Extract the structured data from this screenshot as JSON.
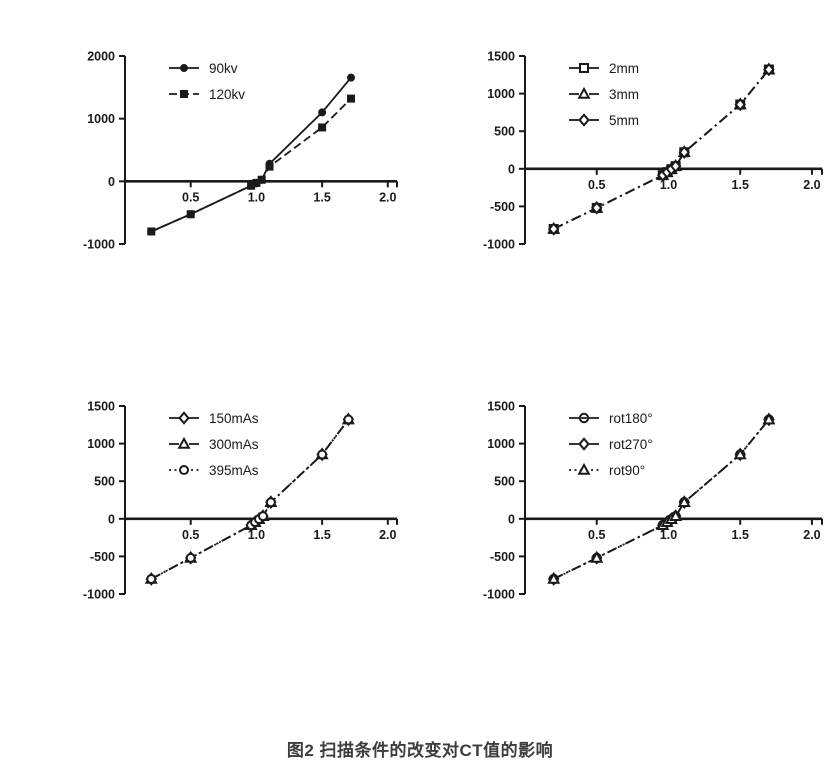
{
  "page": {
    "background": "#ffffff"
  },
  "colors": {
    "ink": "#1a1a1a",
    "caption": "#3d3d3d",
    "marker_fill": "#ffffff"
  },
  "caption": "图2  扫描条件的改变对CT值的影响",
  "chart_data": [
    {
      "type": "line",
      "title": "",
      "xlabel": "",
      "ylabel": "",
      "xlim": [
        0,
        2.07
      ],
      "ylim": [
        -1000,
        2000
      ],
      "xticks": [
        0.5,
        1.0,
        1.5,
        2.0
      ],
      "yticks": [
        2000,
        1000,
        0,
        -1000
      ],
      "grid": false,
      "legend_position": "upper-left",
      "series": [
        {
          "name": "90kv",
          "marker": "filled-circle",
          "linestyle": "solid",
          "points": [
            [
              0.2,
              -800
            ],
            [
              0.5,
              -525
            ],
            [
              0.96,
              -70
            ],
            [
              1.0,
              -25
            ],
            [
              1.04,
              25
            ],
            [
              1.1,
              280
            ],
            [
              1.5,
              1100
            ],
            [
              1.72,
              1655
            ]
          ]
        },
        {
          "name": "120kv",
          "marker": "filled-square",
          "linestyle": "dashed",
          "points": [
            [
              0.2,
              -800
            ],
            [
              0.5,
              -525
            ],
            [
              0.96,
              -70
            ],
            [
              1.0,
              -25
            ],
            [
              1.04,
              25
            ],
            [
              1.1,
              235
            ],
            [
              1.5,
              860
            ],
            [
              1.72,
              1320
            ]
          ]
        }
      ]
    },
    {
      "type": "line",
      "title": "",
      "xlabel": "",
      "ylabel": "",
      "xlim": [
        0,
        2.07
      ],
      "ylim": [
        -1000,
        1500
      ],
      "xticks": [
        0.5,
        1.0,
        1.5,
        2.0
      ],
      "yticks": [
        1500,
        1000,
        500,
        0,
        -500,
        -1000
      ],
      "grid": false,
      "legend_position": "upper-left",
      "series": [
        {
          "name": "2mm",
          "marker": "open-square",
          "linestyle": "dashdot",
          "points": [
            [
              0.2,
              -800
            ],
            [
              0.5,
              -520
            ],
            [
              0.96,
              -85
            ],
            [
              0.99,
              -45
            ],
            [
              1.02,
              -5
            ],
            [
              1.05,
              35
            ],
            [
              1.11,
              220
            ],
            [
              1.5,
              855
            ],
            [
              1.7,
              1320
            ]
          ]
        },
        {
          "name": "3mm",
          "marker": "open-triangle",
          "linestyle": "dashdot",
          "points": [
            [
              0.2,
              -800
            ],
            [
              0.5,
              -520
            ],
            [
              0.96,
              -85
            ],
            [
              0.99,
              -45
            ],
            [
              1.02,
              -5
            ],
            [
              1.05,
              35
            ],
            [
              1.11,
              220
            ],
            [
              1.5,
              855
            ],
            [
              1.7,
              1320
            ]
          ]
        },
        {
          "name": "5mm",
          "marker": "open-diamond",
          "linestyle": "dashdot",
          "points": [
            [
              0.2,
              -800
            ],
            [
              0.5,
              -520
            ],
            [
              0.96,
              -85
            ],
            [
              0.99,
              -45
            ],
            [
              1.02,
              -5
            ],
            [
              1.05,
              35
            ],
            [
              1.11,
              220
            ],
            [
              1.5,
              855
            ],
            [
              1.7,
              1320
            ]
          ]
        }
      ]
    },
    {
      "type": "line",
      "title": "",
      "xlabel": "",
      "ylabel": "",
      "xlim": [
        0,
        2.07
      ],
      "ylim": [
        -1000,
        1500
      ],
      "xticks": [
        0.5,
        1.0,
        1.5,
        2.0
      ],
      "yticks": [
        1500,
        1000,
        500,
        0,
        -500,
        -1000
      ],
      "grid": false,
      "legend_position": "upper-left",
      "series": [
        {
          "name": "150mAs",
          "marker": "open-diamond",
          "linestyle": "dashdot",
          "points": [
            [
              0.2,
              -800
            ],
            [
              0.5,
              -520
            ],
            [
              0.96,
              -85
            ],
            [
              0.99,
              -45
            ],
            [
              1.02,
              -5
            ],
            [
              1.05,
              35
            ],
            [
              1.11,
              220
            ],
            [
              1.5,
              855
            ],
            [
              1.7,
              1320
            ]
          ]
        },
        {
          "name": "300mAs",
          "marker": "open-triangle",
          "linestyle": "dashdot",
          "points": [
            [
              0.2,
              -800
            ],
            [
              0.5,
              -520
            ],
            [
              0.96,
              -85
            ],
            [
              0.99,
              -45
            ],
            [
              1.02,
              -5
            ],
            [
              1.05,
              35
            ],
            [
              1.11,
              220
            ],
            [
              1.5,
              855
            ],
            [
              1.7,
              1320
            ]
          ]
        },
        {
          "name": "395mAs",
          "marker": "open-circle",
          "linestyle": "dotted",
          "points": [
            [
              0.2,
              -800
            ],
            [
              0.5,
              -520
            ],
            [
              0.96,
              -85
            ],
            [
              0.99,
              -45
            ],
            [
              1.02,
              -5
            ],
            [
              1.05,
              35
            ],
            [
              1.11,
              220
            ],
            [
              1.5,
              855
            ],
            [
              1.7,
              1320
            ]
          ]
        }
      ]
    },
    {
      "type": "line",
      "title": "",
      "xlabel": "",
      "ylabel": "",
      "xlim": [
        0,
        2.07
      ],
      "ylim": [
        -1000,
        1500
      ],
      "xticks": [
        0.5,
        1.0,
        1.5,
        2.0
      ],
      "yticks": [
        1500,
        1000,
        500,
        0,
        -500,
        -1000
      ],
      "grid": false,
      "legend_position": "upper-left",
      "series": [
        {
          "name": "rot180°",
          "marker": "circle-hbar",
          "linestyle": "dashdot",
          "points": [
            [
              0.2,
              -800
            ],
            [
              0.5,
              -520
            ],
            [
              0.96,
              -85
            ],
            [
              0.99,
              -45
            ],
            [
              1.02,
              -5
            ],
            [
              1.05,
              35
            ],
            [
              1.11,
              220
            ],
            [
              1.5,
              855
            ],
            [
              1.7,
              1320
            ]
          ]
        },
        {
          "name": "rot270°",
          "marker": "open-diamond",
          "linestyle": "dashdot",
          "points": [
            [
              0.2,
              -800
            ],
            [
              0.5,
              -520
            ],
            [
              0.96,
              -85
            ],
            [
              0.99,
              -45
            ],
            [
              1.02,
              -5
            ],
            [
              1.05,
              35
            ],
            [
              1.11,
              220
            ],
            [
              1.5,
              855
            ],
            [
              1.7,
              1320
            ]
          ]
        },
        {
          "name": "rot90°",
          "marker": "open-triangle",
          "linestyle": "dotted",
          "points": [
            [
              0.2,
              -800
            ],
            [
              0.5,
              -520
            ],
            [
              0.96,
              -85
            ],
            [
              0.99,
              -45
            ],
            [
              1.02,
              -5
            ],
            [
              1.05,
              35
            ],
            [
              1.11,
              220
            ],
            [
              1.5,
              855
            ],
            [
              1.7,
              1320
            ]
          ]
        }
      ]
    }
  ]
}
